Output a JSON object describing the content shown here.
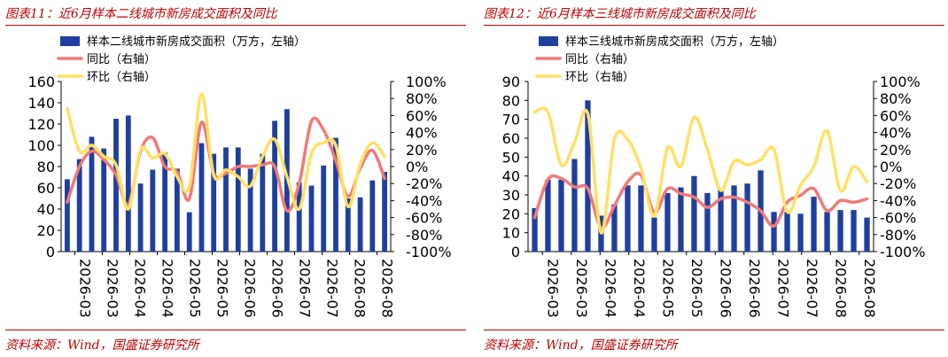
{
  "figures": [
    {
      "title": "图表11：近6月样本二线城市新房成交面积及同比",
      "source": "资料来源：Wind，国盛证券研究所"
    },
    {
      "title": "图表12：近6月样本三线城市新房成交面积及同比",
      "source": "资料来源：Wind，国盛证券研究所"
    }
  ],
  "colors": {
    "accent": "#c00000",
    "bar": "#1f3fa0",
    "yoy": "#f07a78",
    "mom": "#ffe066"
  },
  "chart_data": [
    {
      "type": "bar",
      "x_tick_labels": [
        "2026-03",
        "2026-03",
        "2026-04",
        "2026-04",
        "2026-05",
        "2026-05",
        "2026-06",
        "2026-06",
        "2026-07",
        "2026-07",
        "2026-08",
        "2026-08"
      ],
      "ylim": [
        0,
        160
      ],
      "yticks": [
        0,
        20,
        40,
        60,
        80,
        100,
        120,
        140,
        160
      ],
      "y2lim": [
        -100,
        100
      ],
      "y2ticks": [
        "100%",
        "80%",
        "60%",
        "40%",
        "20%",
        "0%",
        "-20%",
        "-40%",
        "-60%",
        "-80%",
        "-100%"
      ],
      "legend": [
        "样本二线城市新房成交面积（万方，左轴）",
        "同比（右轴）",
        "环比（右轴）"
      ],
      "legend_position": "top-left",
      "bars": [
        68,
        87,
        108,
        97,
        125,
        128,
        64,
        77,
        93,
        78,
        37,
        102,
        92,
        98,
        98,
        78,
        92,
        123,
        134,
        65,
        62,
        81,
        107,
        50,
        51,
        67,
        75
      ],
      "yoy": [
        -42,
        0,
        18,
        8,
        -10,
        -45,
        18,
        34,
        0,
        -6,
        -38,
        52,
        -8,
        -8,
        0,
        0,
        2,
        0,
        -52,
        -20,
        53,
        43,
        7,
        -35,
        -2,
        19,
        -14
      ],
      "mom": [
        68,
        18,
        25,
        12,
        2,
        -50,
        20,
        10,
        15,
        -12,
        -24,
        85,
        -10,
        -4,
        -12,
        -23,
        12,
        32,
        -12,
        -50,
        15,
        28,
        25,
        -47,
        3,
        28,
        12
      ]
    },
    {
      "type": "bar",
      "x_tick_labels": [
        "2026-03",
        "2026-03",
        "2026-04",
        "2026-04",
        "2026-05",
        "2026-05",
        "2026-06",
        "2026-06",
        "2026-07",
        "2026-07",
        "2026-08",
        "2026-08"
      ],
      "ylim": [
        0,
        90
      ],
      "yticks": [
        0,
        10,
        20,
        30,
        40,
        50,
        60,
        70,
        80,
        90
      ],
      "y2lim": [
        -100,
        100
      ],
      "y2ticks": [
        "100%",
        "80%",
        "60%",
        "40%",
        "20%",
        "0%",
        "-20%",
        "-40%",
        "-60%",
        "-80%",
        "-100%"
      ],
      "legend": [
        "样本三线城市新房成交面积（万方，左轴）",
        "同比（右轴）",
        "环比（右轴）"
      ],
      "legend_position": "top-left",
      "bars": [
        23,
        38,
        38,
        49,
        80,
        19,
        25,
        35,
        35,
        18,
        31,
        34,
        40,
        31,
        33,
        35,
        36,
        43,
        21,
        21,
        20,
        29,
        21,
        22,
        22,
        18
      ],
      "yoy": [
        -60,
        -15,
        -14,
        -24,
        -26,
        -72,
        -46,
        -18,
        -10,
        -54,
        -26,
        -32,
        -36,
        -48,
        -38,
        -36,
        -42,
        -52,
        -70,
        -42,
        -34,
        -26,
        -52,
        -40,
        -42,
        -38
      ],
      "mom": [
        64,
        64,
        2,
        28,
        62,
        -78,
        32,
        32,
        -2,
        -58,
        22,
        0,
        58,
        20,
        -28,
        6,
        2,
        8,
        20,
        -53,
        -22,
        0,
        42,
        -28,
        0,
        -18
      ]
    }
  ]
}
